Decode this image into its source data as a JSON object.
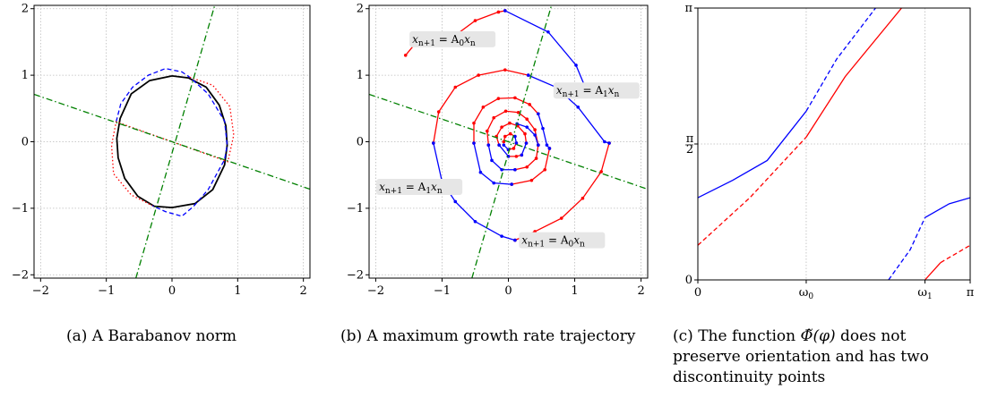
{
  "figures": [
    {
      "caption": "(a) A Barabanov norm",
      "chart_data": {
        "type": "line",
        "xlim": [
          -2.1,
          2.1
        ],
        "ylim": [
          -2.05,
          2.05
        ],
        "xticks": [
          -2,
          -1,
          0,
          1,
          2
        ],
        "yticks": [
          -2,
          -1,
          0,
          1,
          2
        ],
        "grid": true,
        "series": [
          {
            "style": "solid",
            "color": "#000000",
            "x": [
              0.0,
              0.25,
              0.52,
              0.72,
              0.82,
              0.84,
              0.8,
              0.62,
              0.35,
              0.0,
              -0.27,
              -0.52,
              -0.72,
              -0.82,
              -0.84,
              -0.79,
              -0.62,
              -0.34,
              0.0
            ],
            "y": [
              0.99,
              0.96,
              0.82,
              0.55,
              0.24,
              -0.05,
              -0.35,
              -0.72,
              -0.93,
              -0.99,
              -0.97,
              -0.82,
              -0.55,
              -0.24,
              0.05,
              0.35,
              0.72,
              0.92,
              0.99
            ]
          },
          {
            "style": "dashed",
            "color": "#0000ff",
            "x": [
              -0.85,
              -0.78,
              -0.6,
              -0.36,
              -0.1,
              0.15,
              0.27,
              0.55,
              0.8,
              0.84,
              0.8,
              0.55,
              0.33,
              0.15,
              -0.1,
              -0.3
            ],
            "y": [
              0.3,
              0.57,
              0.82,
              1.0,
              1.1,
              1.05,
              0.97,
              0.72,
              0.31,
              -0.05,
              -0.27,
              -0.72,
              -0.97,
              -1.12,
              -1.05,
              -0.96
            ]
          },
          {
            "style": "dotted",
            "color": "#ff0000",
            "x": [
              0.27,
              0.62,
              0.88,
              0.94,
              0.85,
              -0.85,
              -0.92,
              -0.89,
              -0.62,
              -0.3
            ],
            "y": [
              0.97,
              0.85,
              0.53,
              0.1,
              -0.3,
              0.3,
              -0.05,
              -0.48,
              -0.8,
              -0.96
            ]
          },
          {
            "style": "dashdot",
            "color": "#008000",
            "x": [
              -2.1,
              2.1
            ],
            "y": [
              0.713,
              -0.713
            ]
          },
          {
            "style": "dashdot",
            "color": "#008000",
            "x": [
              -0.55,
              0.65
            ],
            "y": [
              -2.05,
              2.05
            ]
          }
        ]
      }
    },
    {
      "caption": "(b) A maximum growth rate trajectory",
      "chart_data": {
        "type": "line",
        "xlim": [
          -2.1,
          2.1
        ],
        "ylim": [
          -2.05,
          2.05
        ],
        "xticks": [
          -2,
          -1,
          0,
          1,
          2
        ],
        "yticks": [
          -2,
          -1,
          0,
          1,
          2
        ],
        "grid": true,
        "annotations": [
          "x_{n+1} = A_0 x_n",
          "x_{n+1} = A_1 x_n",
          "x_{n+1} = A_1 x_n",
          "x_{n+1} = A_0 x_n"
        ],
        "annotation_labels": [
          {
            "text": "x",
            "sub": "n+1",
            "eq": " = A",
            "sub2": "0",
            "tail": "x",
            "sub3": "n"
          },
          {
            "text": "x",
            "sub": "n+1",
            "eq": " = A",
            "sub2": "1",
            "tail": "x",
            "sub3": "n"
          },
          {
            "text": "x",
            "sub": "n+1",
            "eq": " = A",
            "sub2": "1",
            "tail": "x",
            "sub3": "n"
          },
          {
            "text": "x",
            "sub": "n+1",
            "eq": " = A",
            "sub2": "0",
            "tail": "x",
            "sub3": "n"
          }
        ],
        "series": [
          {
            "color": "#ff0000",
            "name": "",
            "segments": [
              [
                [
                  -0.07,
                  0.0
                ],
                [
                  -0.05,
                  0.08
                ],
                [
                  0.03,
                  0.12
                ],
                [
                  0.1,
                  0.08
                ]
              ],
              [
                [
                  -0.14,
                  -0.05
                ],
                [
                  -0.18,
                  0.08
                ],
                [
                  -0.1,
                  0.22
                ],
                [
                  0.02,
                  0.28
                ],
                [
                  0.14,
                  0.24
                ],
                [
                  0.25,
                  0.12
                ],
                [
                  0.27,
                  -0.02
                ]
              ],
              [
                [
                  -0.3,
                  -0.05
                ],
                [
                  -0.32,
                  0.16
                ],
                [
                  -0.22,
                  0.36
                ],
                [
                  -0.04,
                  0.46
                ],
                [
                  0.15,
                  0.44
                ],
                [
                  0.28,
                  0.34
                ],
                [
                  0.4,
                  0.18
                ],
                [
                  0.45,
                  -0.05
                ]
              ],
              [
                [
                  -0.52,
                  -0.02
                ],
                [
                  -0.52,
                  0.28
                ],
                [
                  -0.38,
                  0.52
                ],
                [
                  -0.15,
                  0.65
                ],
                [
                  0.1,
                  0.66
                ],
                [
                  0.32,
                  0.56
                ],
                [
                  0.45,
                  0.42
                ]
              ],
              [
                [
                  -1.13,
                  -0.02
                ],
                [
                  -1.05,
                  0.45
                ],
                [
                  -0.8,
                  0.82
                ],
                [
                  -0.45,
                  1.0
                ],
                [
                  -0.05,
                  1.08
                ],
                [
                  0.3,
                  1.0
                ]
              ],
              [
                [
                  -0.8,
                  1.6
                ],
                [
                  -0.5,
                  1.82
                ],
                [
                  -0.15,
                  1.95
                ],
                [
                  -0.05,
                  1.97
                ]
              ],
              [
                [
                  -1.55,
                  1.3
                ],
                [
                  -1.3,
                  1.6
                ]
              ],
              [
                [
                  0.12,
                  -0.02
                ],
                [
                  0.08,
                  -0.1
                ],
                [
                  0.0,
                  -0.12
                ]
              ],
              [
                [
                  0.2,
                  -0.2
                ],
                [
                  0.12,
                  -0.22
                ],
                [
                  0.0,
                  -0.22
                ]
              ],
              [
                [
                  0.45,
                  -0.05
                ],
                [
                  0.42,
                  -0.25
                ],
                [
                  0.28,
                  -0.38
                ],
                [
                  0.1,
                  -0.42
                ]
              ],
              [
                [
                  0.62,
                  -0.1
                ],
                [
                  0.55,
                  -0.42
                ],
                [
                  0.35,
                  -0.58
                ],
                [
                  0.05,
                  -0.64
                ]
              ],
              [
                [
                  1.52,
                  -0.02
                ],
                [
                  1.4,
                  -0.45
                ],
                [
                  1.12,
                  -0.85
                ],
                [
                  0.8,
                  -1.15
                ],
                [
                  0.4,
                  -1.35
                ],
                [
                  0.1,
                  -1.48
                ]
              ]
            ]
          },
          {
            "color": "#0000ff",
            "name": "",
            "segments": [
              [
                [
                  0.1,
                  0.08
                ],
                [
                  0.12,
                  -0.02
                ]
              ],
              [
                [
                  0.27,
                  -0.02
                ],
                [
                  0.2,
                  -0.2
                ]
              ],
              [
                [
                  0.45,
                  -0.05
                ],
                [
                  0.4,
                  0.1
                ],
                [
                  0.28,
                  0.22
                ],
                [
                  0.13,
                  0.27
                ]
              ],
              [
                [
                  0.45,
                  0.42
                ],
                [
                  0.52,
                  0.2
                ],
                [
                  0.58,
                  -0.05
                ],
                [
                  0.62,
                  -0.1
                ]
              ],
              [
                [
                  0.0,
                  -0.12
                ],
                [
                  -0.07,
                  -0.05
                ]
              ],
              [
                [
                  0.0,
                  -0.22
                ],
                [
                  -0.14,
                  -0.05
                ]
              ],
              [
                [
                  0.1,
                  -0.42
                ],
                [
                  -0.1,
                  -0.42
                ],
                [
                  -0.25,
                  -0.28
                ],
                [
                  -0.3,
                  -0.05
                ]
              ],
              [
                [
                  0.05,
                  -0.64
                ],
                [
                  -0.22,
                  -0.62
                ],
                [
                  -0.42,
                  -0.46
                ],
                [
                  -0.52,
                  -0.02
                ]
              ],
              [
                [
                  0.1,
                  -1.48
                ],
                [
                  -0.1,
                  -1.42
                ],
                [
                  -0.5,
                  -1.2
                ],
                [
                  -0.8,
                  -0.9
                ],
                [
                  -1.0,
                  -0.6
                ],
                [
                  -1.13,
                  -0.02
                ]
              ],
              [
                [
                  0.3,
                  1.0
                ],
                [
                  0.72,
                  0.82
                ],
                [
                  1.05,
                  0.52
                ],
                [
                  1.45,
                  0.0
                ],
                [
                  1.52,
                  -0.02
                ]
              ],
              [
                [
                  -0.05,
                  1.97
                ],
                [
                  0.6,
                  1.65
                ],
                [
                  1.02,
                  1.15
                ],
                [
                  1.2,
                  0.72
                ]
              ],
              [
                [
                  -1.3,
                  1.6
                ],
                [
                  -0.8,
                  1.6
                ]
              ]
            ]
          },
          {
            "style": "dashdot",
            "color": "#008000",
            "x": [
              -2.1,
              2.1
            ],
            "y": [
              0.713,
              -0.713
            ]
          },
          {
            "style": "dashdot",
            "color": "#008000",
            "x": [
              -0.55,
              0.65
            ],
            "y": [
              -2.05,
              2.05
            ]
          }
        ]
      }
    },
    {
      "caption": "(c) The function Φ̃(φ) does not preserve orientation and has two discontinuity points",
      "caption_lines": [
        "(c) The function ",
        "Φ̃(φ)",
        " does not",
        "preserve orientation and has two",
        "discontinuity points"
      ],
      "chart_data": {
        "type": "line",
        "xlim": [
          0,
          3.1416
        ],
        "ylim": [
          0,
          3.1416
        ],
        "xticks": [
          0,
          1.25,
          2.62,
          3.1416
        ],
        "xticklabels": [
          "0",
          "ω0",
          "ω1",
          "π"
        ],
        "yticks": [
          0,
          1.5708,
          3.1416
        ],
        "yticklabels": [
          "0",
          "π/2",
          "π"
        ],
        "grid": true,
        "series": [
          {
            "style": "solid",
            "color": "#0000ff",
            "x": [
              0,
              0.4,
              0.8,
              1.25
            ],
            "y": [
              0.95,
              1.15,
              1.38,
              1.95
            ]
          },
          {
            "style": "dashed",
            "color": "#0000ff",
            "x": [
              1.25,
              1.6,
              2.05
            ],
            "y": [
              1.95,
              2.55,
              3.1416
            ]
          },
          {
            "style": "dashed",
            "color": "#ff0000",
            "x": [
              0,
              0.6,
              1.25
            ],
            "y": [
              0.4,
              0.95,
              1.65
            ]
          },
          {
            "style": "solid",
            "color": "#ff0000",
            "x": [
              1.25,
              1.7,
              2.35
            ],
            "y": [
              1.65,
              2.35,
              3.1416
            ]
          },
          {
            "style": "dashed",
            "color": "#0000ff",
            "x": [
              2.2,
              2.45,
              2.62
            ],
            "y": [
              0,
              0.35,
              0.72
            ]
          },
          {
            "style": "solid",
            "color": "#0000ff",
            "x": [
              2.62,
              2.9,
              3.1416
            ],
            "y": [
              0.72,
              0.88,
              0.95
            ]
          },
          {
            "style": "solid",
            "color": "#ff0000",
            "x": [
              2.62,
              2.8
            ],
            "y": [
              0,
              0.2
            ]
          },
          {
            "style": "dashed",
            "color": "#ff0000",
            "x": [
              2.8,
              3.1416
            ],
            "y": [
              0.2,
              0.4
            ]
          }
        ]
      }
    }
  ]
}
